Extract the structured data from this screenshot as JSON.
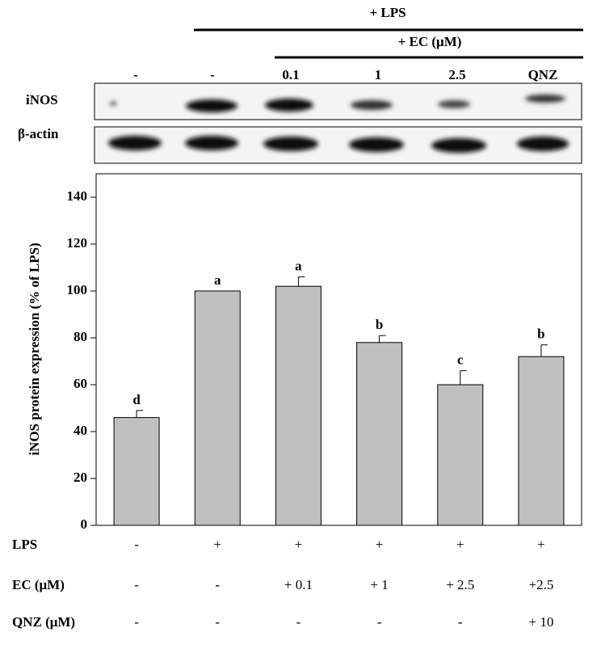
{
  "blot": {
    "group_labels": [
      "+ LPS",
      "+ EC (μM)"
    ],
    "lanes": [
      "-",
      "-",
      "0.1",
      "1",
      "2.5",
      "QNZ"
    ],
    "rows": [
      "iNOS",
      "β-actin"
    ]
  },
  "chart_data": {
    "type": "bar",
    "y_label": "iNOS protein expression (% of LPS)",
    "categories": [
      null,
      null,
      null,
      null,
      null,
      null
    ],
    "values": [
      46,
      100,
      102,
      78,
      60,
      72
    ],
    "errors": [
      3,
      0,
      4,
      3,
      6,
      5
    ],
    "annotations": [
      "d",
      "a",
      "a",
      "b",
      "c",
      "b"
    ],
    "color": "#c0c0c0",
    "ylim": [
      0,
      150
    ],
    "yticks": [
      0,
      20,
      40,
      60,
      80,
      100,
      120,
      140
    ]
  },
  "treatments": {
    "rows": [
      {
        "name": "LPS",
        "values": [
          "-",
          "+",
          "+",
          "+",
          "+",
          "+"
        ]
      },
      {
        "name": "EC (μM)",
        "values": [
          "-",
          "-",
          "+ 0.1",
          "+ 1",
          "+ 2.5",
          "+2.5"
        ]
      },
      {
        "name": "QNZ (μM)",
        "values": [
          "-",
          "-",
          "-",
          "-",
          "-",
          "+ 10"
        ]
      }
    ]
  }
}
